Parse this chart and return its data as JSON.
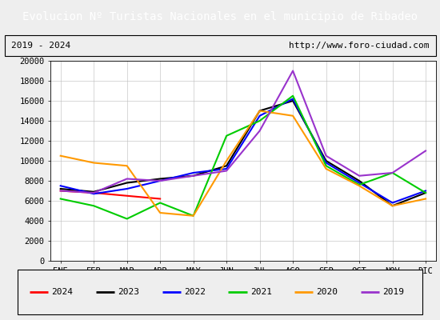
{
  "title": "Evolucion Nº Turistas Nacionales en el municipio de Ribadeo",
  "subtitle_left": "2019 - 2024",
  "subtitle_right": "http://www.foro-ciudad.com",
  "months": [
    "ENE",
    "FEB",
    "MAR",
    "ABR",
    "MAY",
    "JUN",
    "JUL",
    "AGO",
    "SEP",
    "OCT",
    "NOV",
    "DIC"
  ],
  "ylim": [
    0,
    20000
  ],
  "yticks": [
    0,
    2000,
    4000,
    6000,
    8000,
    10000,
    12000,
    14000,
    16000,
    18000,
    20000
  ],
  "series": {
    "2024": {
      "color": "#ff0000",
      "linewidth": 1.5,
      "data": [
        7000,
        6800,
        6500,
        6200,
        null,
        null,
        null,
        null,
        null,
        null,
        null,
        null
      ]
    },
    "2023": {
      "color": "#000000",
      "linewidth": 1.5,
      "data": [
        7200,
        6900,
        7800,
        8200,
        8500,
        9500,
        15000,
        16000,
        10000,
        8000,
        5500,
        6800
      ]
    },
    "2022": {
      "color": "#0000ff",
      "linewidth": 1.5,
      "data": [
        7500,
        6700,
        7200,
        8000,
        8800,
        9200,
        14500,
        16200,
        9800,
        7800,
        5800,
        7000
      ]
    },
    "2021": {
      "color": "#00cc00",
      "linewidth": 1.5,
      "data": [
        6200,
        5500,
        4200,
        5800,
        4500,
        12500,
        14000,
        16500,
        9500,
        7600,
        8800,
        6800
      ]
    },
    "2020": {
      "color": "#ff9900",
      "linewidth": 1.5,
      "data": [
        10500,
        9800,
        9500,
        4800,
        4500,
        10000,
        15000,
        14500,
        9200,
        7500,
        5500,
        6200
      ]
    },
    "2019": {
      "color": "#9933cc",
      "linewidth": 1.5,
      "data": [
        7000,
        6800,
        8200,
        8000,
        8500,
        9000,
        13000,
        19000,
        10500,
        8500,
        8800,
        11000
      ]
    }
  },
  "title_bg": "#4472c4",
  "title_color": "#ffffff",
  "title_fontsize": 10,
  "subtitle_fontsize": 8,
  "tick_fontsize": 7.5,
  "legend_fontsize": 8,
  "background_color": "#eeeeee",
  "plot_bg": "#ffffff",
  "legend_order": [
    "2024",
    "2023",
    "2022",
    "2021",
    "2020",
    "2019"
  ]
}
